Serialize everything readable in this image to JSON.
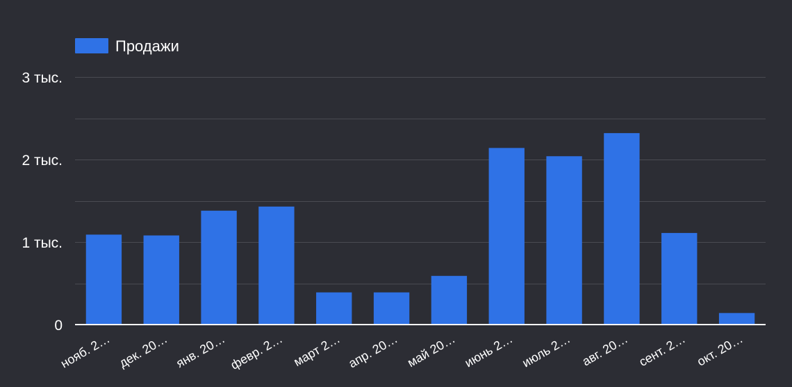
{
  "chart_data": {
    "type": "bar",
    "title": "",
    "xlabel": "",
    "ylabel": "",
    "legend": {
      "position": "top-left",
      "entries": [
        "Продажи"
      ]
    },
    "grid": true,
    "ylim": [
      0,
      3000
    ],
    "y_ticks": [
      {
        "value": 0,
        "label": "0"
      },
      {
        "value": 1000,
        "label": "1 тыс."
      },
      {
        "value": 2000,
        "label": "2 тыс."
      },
      {
        "value": 3000,
        "label": "3 тыс."
      }
    ],
    "categories": [
      "нояб. 2…",
      "дек. 20…",
      "янв. 20…",
      "февр. 2…",
      "март 2…",
      "апр. 20…",
      "май 20…",
      "июнь 2…",
      "июль 2…",
      "авг. 20…",
      "сент. 2…",
      "окт. 20…"
    ],
    "series": [
      {
        "name": "Продажи",
        "color": "#2f72e6",
        "values": [
          1090,
          1080,
          1380,
          1430,
          390,
          390,
          590,
          2140,
          2040,
          2320,
          1110,
          140
        ]
      }
    ]
  }
}
